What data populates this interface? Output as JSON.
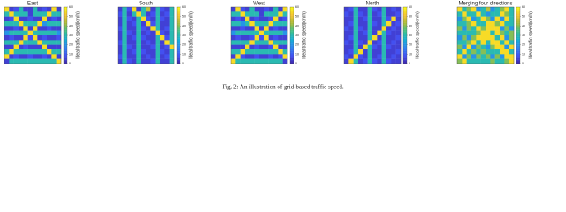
{
  "chart_data": [
    {
      "type": "heatmap",
      "title": "East",
      "colorbar_label": "Ideal traffic speed(km/h)",
      "zlim": [
        0,
        60
      ],
      "zticks": [
        0,
        10,
        20,
        30,
        40,
        50,
        60
      ],
      "colormap": [
        "#3e26a8",
        "#4353f5",
        "#2e86f0",
        "#16b0d6",
        "#3ec38e",
        "#a9bd3b",
        "#f5c533",
        "#f9fb15"
      ],
      "z": [
        [
          55,
          5,
          8,
          30,
          5,
          5,
          30,
          5,
          8,
          5,
          55,
          5
        ],
        [
          30,
          55,
          30,
          30,
          30,
          5,
          30,
          30,
          30,
          55,
          30,
          30
        ],
        [
          5,
          8,
          55,
          5,
          5,
          8,
          5,
          5,
          55,
          5,
          8,
          5
        ],
        [
          30,
          30,
          30,
          55,
          30,
          30,
          30,
          55,
          20,
          30,
          30,
          30
        ],
        [
          5,
          5,
          8,
          5,
          55,
          5,
          55,
          5,
          5,
          8,
          5,
          5
        ],
        [
          20,
          30,
          30,
          30,
          30,
          55,
          30,
          30,
          30,
          30,
          30,
          20
        ],
        [
          5,
          8,
          5,
          5,
          55,
          8,
          55,
          5,
          8,
          5,
          5,
          8
        ],
        [
          30,
          30,
          30,
          55,
          30,
          30,
          30,
          55,
          30,
          30,
          30,
          30
        ],
        [
          5,
          5,
          55,
          5,
          8,
          5,
          5,
          5,
          55,
          5,
          5,
          5
        ],
        [
          30,
          55,
          30,
          30,
          30,
          30,
          30,
          30,
          30,
          55,
          30,
          30
        ],
        [
          55,
          5,
          8,
          5,
          5,
          8,
          5,
          5,
          8,
          5,
          55,
          5
        ],
        [
          5,
          30,
          30,
          30,
          30,
          30,
          30,
          30,
          30,
          30,
          30,
          55
        ]
      ]
    },
    {
      "type": "heatmap",
      "title": "South",
      "colorbar_label": "Ideal traffic speed(km/h)",
      "zlim": [
        0,
        60
      ],
      "zticks": [
        0,
        10,
        20,
        30,
        40,
        50,
        60
      ],
      "colormap": [
        "#3e26a8",
        "#4353f5",
        "#2e86f0",
        "#16b0d6",
        "#3ec38e",
        "#a9bd3b",
        "#f5c533",
        "#f9fb15"
      ],
      "z": [
        [
          5,
          30,
          8,
          55,
          5,
          30,
          45,
          5,
          30,
          8,
          5,
          30
        ],
        [
          8,
          30,
          5,
          30,
          55,
          30,
          5,
          8,
          30,
          5,
          8,
          30
        ],
        [
          5,
          30,
          8,
          5,
          30,
          55,
          8,
          5,
          30,
          8,
          5,
          30
        ],
        [
          5,
          30,
          5,
          8,
          30,
          5,
          55,
          8,
          30,
          5,
          5,
          30
        ],
        [
          8,
          30,
          5,
          5,
          30,
          8,
          5,
          55,
          30,
          5,
          8,
          30
        ],
        [
          5,
          30,
          8,
          5,
          30,
          5,
          8,
          5,
          55,
          8,
          5,
          30
        ],
        [
          5,
          30,
          5,
          8,
          30,
          8,
          5,
          5,
          30,
          55,
          8,
          30
        ],
        [
          8,
          30,
          5,
          5,
          30,
          5,
          8,
          5,
          30,
          5,
          55,
          30
        ],
        [
          5,
          30,
          8,
          5,
          30,
          5,
          5,
          8,
          30,
          5,
          8,
          55
        ],
        [
          5,
          30,
          5,
          8,
          30,
          8,
          5,
          5,
          30,
          8,
          5,
          30
        ],
        [
          8,
          30,
          5,
          5,
          30,
          5,
          8,
          5,
          30,
          5,
          8,
          30
        ],
        [
          5,
          30,
          8,
          5,
          30,
          5,
          5,
          8,
          30,
          5,
          5,
          30
        ]
      ]
    },
    {
      "type": "heatmap",
      "title": "West",
      "colorbar_label": "Ideal traffic speed(km/h)",
      "zlim": [
        0,
        60
      ],
      "zticks": [
        0,
        10,
        20,
        30,
        40,
        50,
        60
      ],
      "colormap": [
        "#3e26a8",
        "#4353f5",
        "#2e86f0",
        "#16b0d6",
        "#3ec38e",
        "#a9bd3b",
        "#f5c533",
        "#f9fb15"
      ],
      "z": [
        [
          5,
          55,
          8,
          5,
          30,
          5,
          5,
          8,
          5,
          30,
          5,
          55
        ],
        [
          30,
          30,
          55,
          30,
          30,
          30,
          5,
          30,
          30,
          30,
          55,
          30
        ],
        [
          5,
          8,
          5,
          55,
          5,
          8,
          5,
          5,
          8,
          55,
          5,
          8
        ],
        [
          30,
          30,
          20,
          30,
          55,
          30,
          30,
          30,
          55,
          30,
          30,
          30
        ],
        [
          5,
          5,
          8,
          5,
          5,
          55,
          5,
          55,
          5,
          8,
          5,
          5
        ],
        [
          20,
          30,
          30,
          30,
          30,
          30,
          55,
          30,
          30,
          30,
          30,
          20
        ],
        [
          5,
          8,
          5,
          5,
          8,
          55,
          8,
          55,
          5,
          8,
          5,
          5
        ],
        [
          30,
          30,
          30,
          30,
          55,
          30,
          30,
          30,
          55,
          30,
          30,
          30
        ],
        [
          5,
          5,
          5,
          55,
          5,
          8,
          5,
          5,
          8,
          55,
          5,
          5
        ],
        [
          30,
          30,
          55,
          30,
          30,
          30,
          30,
          30,
          30,
          30,
          55,
          30
        ],
        [
          5,
          55,
          8,
          5,
          5,
          8,
          5,
          5,
          8,
          5,
          8,
          55
        ],
        [
          55,
          30,
          30,
          30,
          30,
          30,
          30,
          30,
          30,
          30,
          30,
          5
        ]
      ]
    },
    {
      "type": "heatmap",
      "title": "North",
      "colorbar_label": "Ideal traffic speed(km/h)",
      "zlim": [
        0,
        60
      ],
      "zticks": [
        0,
        10,
        20,
        30,
        40,
        50,
        60
      ],
      "colormap": [
        "#3e26a8",
        "#4353f5",
        "#2e86f0",
        "#16b0d6",
        "#3ec38e",
        "#a9bd3b",
        "#f5c533",
        "#f9fb15"
      ],
      "z": [
        [
          5,
          8,
          30,
          5,
          5,
          30,
          8,
          5,
          30,
          5,
          8,
          5
        ],
        [
          8,
          5,
          30,
          8,
          5,
          30,
          5,
          8,
          30,
          5,
          5,
          8
        ],
        [
          5,
          5,
          30,
          5,
          8,
          30,
          5,
          5,
          30,
          8,
          55,
          5
        ],
        [
          5,
          8,
          30,
          5,
          5,
          30,
          8,
          5,
          30,
          55,
          5,
          8
        ],
        [
          8,
          5,
          30,
          8,
          5,
          30,
          5,
          5,
          55,
          5,
          8,
          5
        ],
        [
          5,
          5,
          30,
          5,
          8,
          30,
          5,
          55,
          30,
          8,
          5,
          5
        ],
        [
          5,
          8,
          30,
          5,
          5,
          30,
          55,
          5,
          30,
          5,
          5,
          8
        ],
        [
          8,
          5,
          30,
          8,
          5,
          55,
          5,
          8,
          30,
          5,
          8,
          5
        ],
        [
          5,
          5,
          30,
          5,
          55,
          30,
          8,
          5,
          30,
          8,
          5,
          5
        ],
        [
          5,
          8,
          30,
          55,
          5,
          30,
          5,
          5,
          30,
          5,
          5,
          8
        ],
        [
          8,
          5,
          55,
          8,
          5,
          30,
          5,
          8,
          30,
          5,
          8,
          5
        ],
        [
          5,
          55,
          30,
          5,
          8,
          30,
          8,
          5,
          30,
          8,
          5,
          5
        ]
      ]
    },
    {
      "type": "heatmap",
      "title": "Merging four directions",
      "colorbar_label": "Ideal traffic speed(km/h)",
      "zlim": [
        0,
        60
      ],
      "zticks": [
        0,
        10,
        20,
        30,
        40,
        50,
        60
      ],
      "colormap": [
        "#3e26a8",
        "#4353f5",
        "#2e86f0",
        "#16b0d6",
        "#3ec38e",
        "#a9bd3b",
        "#f5c533",
        "#f9fb15"
      ],
      "z": [
        [
          55,
          30,
          40,
          55,
          20,
          30,
          45,
          20,
          30,
          40,
          55,
          30
        ],
        [
          30,
          55,
          30,
          30,
          55,
          30,
          20,
          30,
          30,
          55,
          40,
          30
        ],
        [
          20,
          40,
          55,
          20,
          30,
          55,
          40,
          20,
          55,
          20,
          55,
          30
        ],
        [
          30,
          30,
          40,
          55,
          30,
          30,
          55,
          55,
          40,
          55,
          30,
          30
        ],
        [
          40,
          20,
          40,
          30,
          55,
          40,
          55,
          55,
          55,
          20,
          40,
          20
        ],
        [
          30,
          30,
          30,
          30,
          40,
          55,
          55,
          30,
          55,
          40,
          30,
          40
        ],
        [
          20,
          40,
          20,
          40,
          55,
          55,
          55,
          55,
          30,
          55,
          20,
          40
        ],
        [
          30,
          30,
          40,
          55,
          30,
          55,
          30,
          55,
          55,
          30,
          55,
          30
        ],
        [
          40,
          20,
          55,
          20,
          40,
          30,
          20,
          40,
          55,
          55,
          20,
          55
        ],
        [
          30,
          55,
          30,
          40,
          30,
          40,
          30,
          30,
          30,
          55,
          55,
          30
        ],
        [
          55,
          20,
          40,
          20,
          40,
          30,
          40,
          20,
          40,
          20,
          55,
          55
        ],
        [
          40,
          55,
          30,
          30,
          30,
          30,
          30,
          40,
          30,
          30,
          40,
          55
        ]
      ]
    }
  ],
  "caption": "Fig. 2: An illustration of grid-based traffic speed."
}
